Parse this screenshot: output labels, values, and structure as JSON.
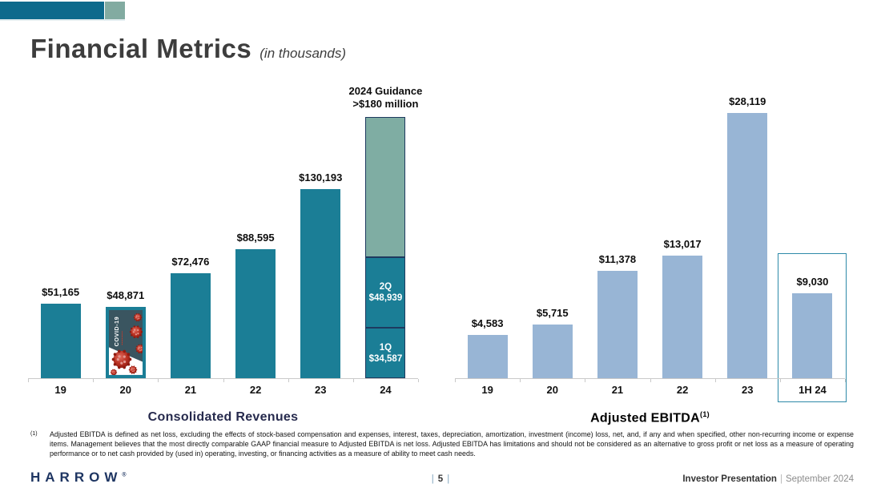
{
  "slide": {
    "title": "Financial Metrics",
    "subtitle": "(in thousands)"
  },
  "accent_colors": {
    "header_bar_teal": "#0d6a8c",
    "header_square_sage": "#82aba1",
    "revenue_bar_teal": "#1b7e96",
    "guidance_sage": "#7fada3",
    "ebitda_bar_blue": "#98b5d5",
    "segment_border_navy": "#1e3a5f",
    "highlight_box_teal": "#2e8aa8",
    "chart_title_navy": "#262a4d"
  },
  "chart_data": [
    {
      "type": "bar",
      "title": "Consolidated Revenues",
      "title_color": "#262a4d",
      "bar_color": "#1b7e96",
      "guidance_color": "#7fada3",
      "segment_border_color": "#1e3a5f",
      "ylim": [
        0,
        182000
      ],
      "grid": false,
      "categories": [
        "19",
        "20",
        "21",
        "22",
        "23",
        "24"
      ],
      "bars": [
        {
          "category": "19",
          "value": 51165,
          "label": "$51,165"
        },
        {
          "category": "20",
          "value": 48871,
          "label": "$48,871",
          "overlay": "covid-19-image"
        },
        {
          "category": "21",
          "value": 72476,
          "label": "$72,476"
        },
        {
          "category": "22",
          "value": 88595,
          "label": "$88,595"
        },
        {
          "category": "23",
          "value": 130193,
          "label": "$130,193"
        },
        {
          "category": "24",
          "annotation": "2024 Guidance\n>$180 million",
          "guidance_total": 180000,
          "segments": [
            {
              "name": "1Q",
              "value": 34587,
              "label": "1Q\n$34,587",
              "color_key": "bar"
            },
            {
              "name": "2Q",
              "value": 48939,
              "label": "2Q\n$48,939",
              "color_key": "bar"
            },
            {
              "name": "guidance-remainder",
              "value": 96474,
              "label": "",
              "color_key": "guidance"
            }
          ]
        }
      ]
    },
    {
      "type": "bar",
      "title": "Adjusted EBITDA",
      "title_superscript": "(1)",
      "title_color": "#000000",
      "bar_color": "#98b5d5",
      "highlight_box_color": "#2e8aa8",
      "ylim": [
        0,
        29000
      ],
      "grid": false,
      "categories": [
        "19",
        "20",
        "21",
        "22",
        "23",
        "1H 24"
      ],
      "bars": [
        {
          "category": "19",
          "value": 4583,
          "label": "$4,583"
        },
        {
          "category": "20",
          "value": 5715,
          "label": "$5,715"
        },
        {
          "category": "21",
          "value": 11378,
          "label": "$11,378"
        },
        {
          "category": "22",
          "value": 13017,
          "label": "$13,017"
        },
        {
          "category": "23",
          "value": 28119,
          "label": "$28,119"
        },
        {
          "category": "1H 24",
          "value": 9030,
          "label": "$9,030",
          "highlight_box": true
        }
      ]
    }
  ],
  "footnote": {
    "marker": "(1)",
    "text": "Adjusted EBITDA is defined as net loss, excluding the effects of stock-based compensation and expenses, interest, taxes, depreciation, amortization, investment (income) loss, net, and, if any and when specified, other non-recurring income or expense items. Management believes that the most directly comparable GAAP financial measure to Adjusted EBITDA is net loss. Adjusted EBITDA has limitations and should not be considered as an alternative to gross profit or net loss as a measure of operating performance or to net cash provided by (used in) operating, investing, or financing activities as a measure of ability to meet cash needs."
  },
  "footer": {
    "logo": "HARROW",
    "logo_mark": "®",
    "page_left_pipe": "|",
    "page_number": "5",
    "page_right_pipe": "|",
    "right_bold": "Investor Presentation",
    "right_separator": "|",
    "right_text": "September 2024"
  }
}
